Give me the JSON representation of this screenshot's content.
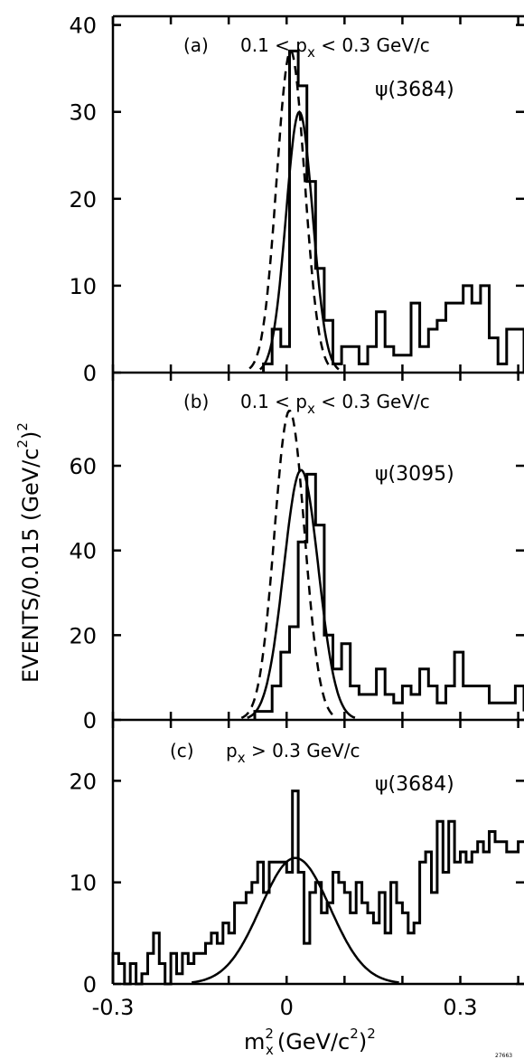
{
  "chart_data": {
    "type": "histogram",
    "shared_x": {
      "ticks": [
        -0.3,
        0,
        0.3
      ],
      "tick_labels": [
        "-0.3",
        "0",
        "0.3"
      ],
      "xlim": [
        -0.3,
        0.41
      ],
      "xlabel_main": "m",
      "xlabel_sub": "x",
      "xlabel_sup": "2",
      "xlabel_rest": "(GeV/c",
      "xlabel_rest_sup": "2",
      "xlabel_rest_end": ")",
      "xlabel_end_sup": "2"
    },
    "shared_y": {
      "ylabel_main": "EVENTS/0.015 (GeV/c",
      "ylabel_sup": "2",
      "ylabel_close": ")",
      "ylabel_sup2": "2"
    },
    "figure_code": "27663",
    "panels": [
      {
        "id": "a",
        "tag": "(a)",
        "cut": "0.1 < p",
        "cut_sub": "x",
        "cut_end": " < 0.3 GeV/c",
        "resonance": "ψ(3684)",
        "ylim": [
          0,
          41
        ],
        "yticks": [
          0,
          10,
          20,
          30,
          40
        ],
        "ytick_labels": [
          "0",
          "10",
          "20",
          "30",
          "40"
        ],
        "bin_width": 0.015,
        "hist_x0": -0.04,
        "hist_values": [
          1,
          5,
          3,
          37,
          33,
          22,
          12,
          6,
          1,
          3,
          3,
          1,
          3,
          7,
          3,
          2,
          2,
          8,
          3,
          5,
          6,
          8,
          8,
          10,
          8,
          10,
          4,
          1,
          5,
          5,
          3,
          5,
          2,
          4,
          0,
          2,
          2
        ],
        "curves": [
          {
            "style": "dashed",
            "peak": 37,
            "center": 0.007,
            "sigma": 0.024
          },
          {
            "style": "solid",
            "peak": 30,
            "center": 0.022,
            "sigma": 0.023
          }
        ]
      },
      {
        "id": "b",
        "tag": "(b)",
        "cut": "0.1 < p",
        "cut_sub": "x",
        "cut_end": " < 0.3 GeV/c",
        "resonance": "ψ(3095)",
        "ylim": [
          0,
          82
        ],
        "yticks": [
          0,
          20,
          40,
          60
        ],
        "ytick_labels": [
          "0",
          "20",
          "40",
          "60"
        ],
        "bin_width": 0.015,
        "hist_x0": -0.055,
        "hist_values": [
          2,
          2,
          8,
          16,
          22,
          42,
          58,
          46,
          20,
          12,
          18,
          8,
          6,
          6,
          12,
          6,
          4,
          8,
          6,
          12,
          8,
          4,
          8,
          16,
          8,
          8,
          8,
          4,
          4,
          4,
          8,
          2,
          4,
          2,
          8,
          2,
          2,
          2
        ],
        "curves": [
          {
            "style": "dashed",
            "peak": 73,
            "center": 0.005,
            "sigma": 0.026
          },
          {
            "style": "solid",
            "peak": 59,
            "center": 0.025,
            "sigma": 0.03
          }
        ]
      },
      {
        "id": "c",
        "tag": "(c)",
        "cut": "p",
        "cut_sub": "x",
        "cut_end": " > 0.3 GeV/c",
        "resonance": "ψ(3684)",
        "ylim": [
          0,
          26
        ],
        "yticks": [
          0,
          10,
          20
        ],
        "ytick_labels": [
          "0",
          "10",
          "20"
        ],
        "bin_width": 0.01,
        "hist_x0": -0.3,
        "hist_values": [
          3,
          2,
          0,
          2,
          0,
          1,
          3,
          5,
          2,
          0,
          3,
          1,
          3,
          2,
          3,
          3,
          4,
          5,
          4,
          6,
          5,
          8,
          8,
          9,
          10,
          12,
          9,
          12,
          12,
          12,
          11,
          19,
          11,
          4,
          9,
          10,
          7,
          8,
          11,
          10,
          9,
          7,
          10,
          8,
          7,
          6,
          9,
          5,
          10,
          8,
          7,
          5,
          6,
          12,
          13,
          9,
          16,
          11,
          16,
          12,
          13,
          12,
          13,
          14,
          13,
          15,
          14,
          14,
          13,
          13,
          14,
          14
        ],
        "curves": [
          {
            "style": "solid",
            "peak": 12.4,
            "center": 0.015,
            "sigma": 0.06
          }
        ]
      }
    ]
  }
}
